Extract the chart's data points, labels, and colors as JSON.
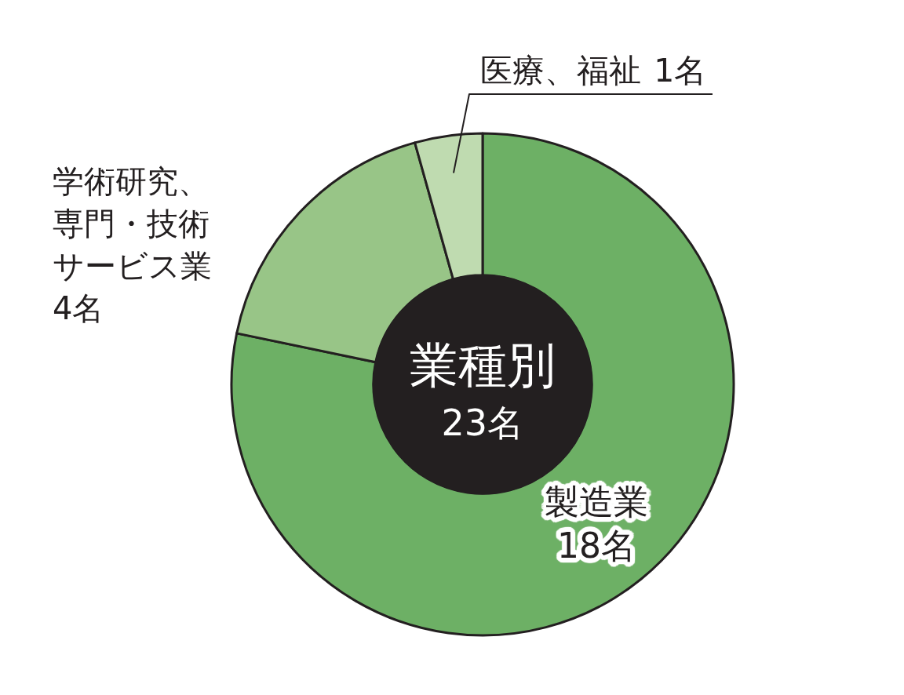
{
  "chart_data": {
    "type": "donut",
    "title": "業種別",
    "subtitle": "23名",
    "categories": [
      "製造業",
      "学術研究、専門・技術サービス業",
      "医療、福祉"
    ],
    "values": [
      18,
      4,
      1
    ],
    "value_labels": [
      "18名",
      "4名",
      "1名"
    ],
    "colors": [
      "#6db065",
      "#98c587",
      "#bfdbb0"
    ]
  }
}
